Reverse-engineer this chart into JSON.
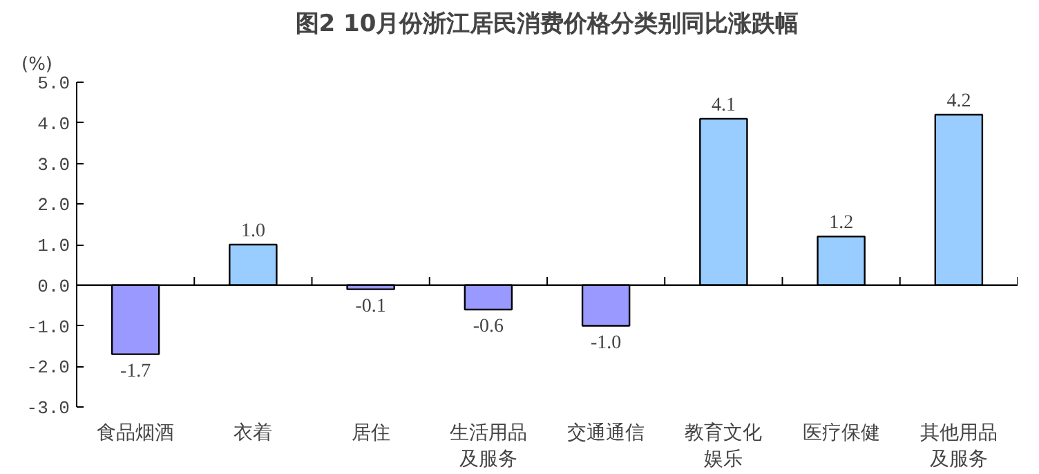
{
  "chart_data": {
    "type": "bar",
    "title": "图2 10月份浙江居民消费价格分类别同比涨跌幅",
    "ylabel": "(%)",
    "categories": [
      "食品烟酒",
      "衣着",
      "居住",
      "生活用品及服务",
      "交通通信",
      "教育文化娱乐",
      "医疗保健",
      "其他用品及服务"
    ],
    "values": [
      -1.7,
      1.0,
      -0.1,
      -0.6,
      -1.0,
      4.1,
      1.2,
      4.2
    ],
    "colors": [
      "#9999ff",
      "#99ccff",
      "#9999ff",
      "#9999ff",
      "#9999ff",
      "#99ccff",
      "#99ccff",
      "#99ccff"
    ],
    "ylim": [
      -3,
      5
    ],
    "yticks": [
      {
        "value": -3,
        "label": "-3.0"
      },
      {
        "value": -2,
        "label": "-2.0"
      },
      {
        "value": -1,
        "label": "-1.0"
      },
      {
        "value": 0,
        "label": "0.0"
      },
      {
        "value": 1,
        "label": "1.0"
      },
      {
        "value": 2,
        "label": "2.0"
      },
      {
        "value": 3,
        "label": "3.0"
      },
      {
        "value": 4,
        "label": "4.0"
      },
      {
        "value": 5,
        "label": "5.0"
      }
    ],
    "value_labels": [
      "-1.7",
      "1.0",
      "-0.1",
      "-0.6",
      "-1.0",
      "4.1",
      "1.2",
      "4.2"
    ]
  }
}
